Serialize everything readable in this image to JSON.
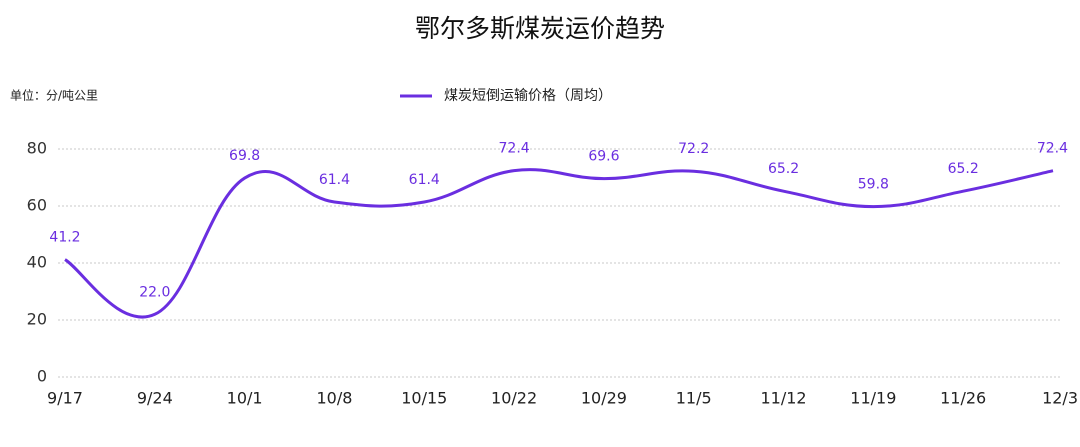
{
  "chart_data": {
    "type": "line",
    "title": "鄂尔多斯煤炭运价趋势",
    "unit_label": "单位：分/吨公里",
    "categories": [
      "9/17",
      "9/24",
      "10/1",
      "10/8",
      "10/15",
      "10/22",
      "10/29",
      "11/5",
      "11/12",
      "11/19",
      "11/26",
      "12/3"
    ],
    "series": [
      {
        "name": "煤炭短倒运输价格（周均）",
        "color": "#6a2ee0",
        "values": [
          41.2,
          22.0,
          69.8,
          61.4,
          61.4,
          72.4,
          69.6,
          72.2,
          65.2,
          59.8,
          65.2,
          72.4
        ],
        "value_labels": [
          "41.2",
          "22.0",
          "69.8",
          "61.4",
          "61.4",
          "72.4",
          "69.6",
          "72.2",
          "65.2",
          "59.8",
          "65.2",
          "72.4"
        ]
      }
    ],
    "ylim": [
      0,
      80
    ],
    "yticks": [
      0,
      20,
      40,
      60,
      80
    ],
    "grid": true,
    "legend": "top",
    "smooth": true
  }
}
